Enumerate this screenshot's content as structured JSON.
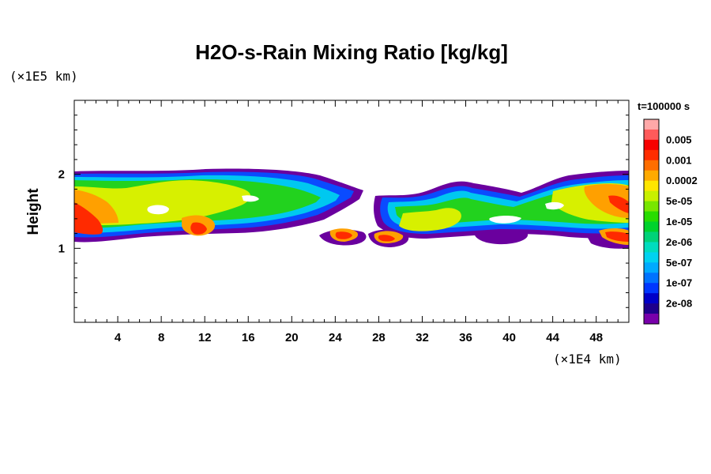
{
  "title": "H2O-s-Rain Mixing Ratio [kg/kg]",
  "y_unit": "(×1E5 km)",
  "x_unit": "(×1E4 km)",
  "time_label": "t=100000 s",
  "chart_data": {
    "type": "heatmap",
    "title": "H2O-s-Rain Mixing Ratio [kg/kg]",
    "xlabel": "",
    "ylabel": "Height",
    "x_unit": "(×1E4 km)",
    "y_unit": "(×1E5 km)",
    "xlim": [
      0,
      51
    ],
    "ylim": [
      0,
      3
    ],
    "x_ticks": [
      4,
      8,
      12,
      16,
      20,
      24,
      28,
      32,
      36,
      40,
      44,
      48
    ],
    "y_ticks": [
      1,
      2
    ],
    "legend_title": "t=100000 s",
    "colorbar": {
      "levels": [
        {
          "label": "",
          "color": "#ffa8a8"
        },
        {
          "label": "0.005",
          "color": "#ff5a5a"
        },
        {
          "label": "",
          "color": "#f70000"
        },
        {
          "label": "0.001",
          "color": "#ff2d00"
        },
        {
          "label": "",
          "color": "#ff6e00"
        },
        {
          "label": "0.0002",
          "color": "#ffaa00"
        },
        {
          "label": "",
          "color": "#ffe600"
        },
        {
          "label": "5e-05",
          "color": "#c8f000"
        },
        {
          "label": "",
          "color": "#78e600"
        },
        {
          "label": "1e-05",
          "color": "#28dc00"
        },
        {
          "label": "",
          "color": "#00d22d"
        },
        {
          "label": "2e-06",
          "color": "#00d278"
        },
        {
          "label": "",
          "color": "#00dcbe"
        },
        {
          "label": "5e-07",
          "color": "#00d2f0"
        },
        {
          "label": "",
          "color": "#00aaff"
        },
        {
          "label": "1e-07",
          "color": "#0073ff"
        },
        {
          "label": "",
          "color": "#0037ff"
        },
        {
          "label": "2e-08",
          "color": "#0000c8"
        },
        {
          "label": "",
          "color": "#1e008c"
        },
        {
          "label": "",
          "color": "#7800aa"
        }
      ]
    }
  }
}
